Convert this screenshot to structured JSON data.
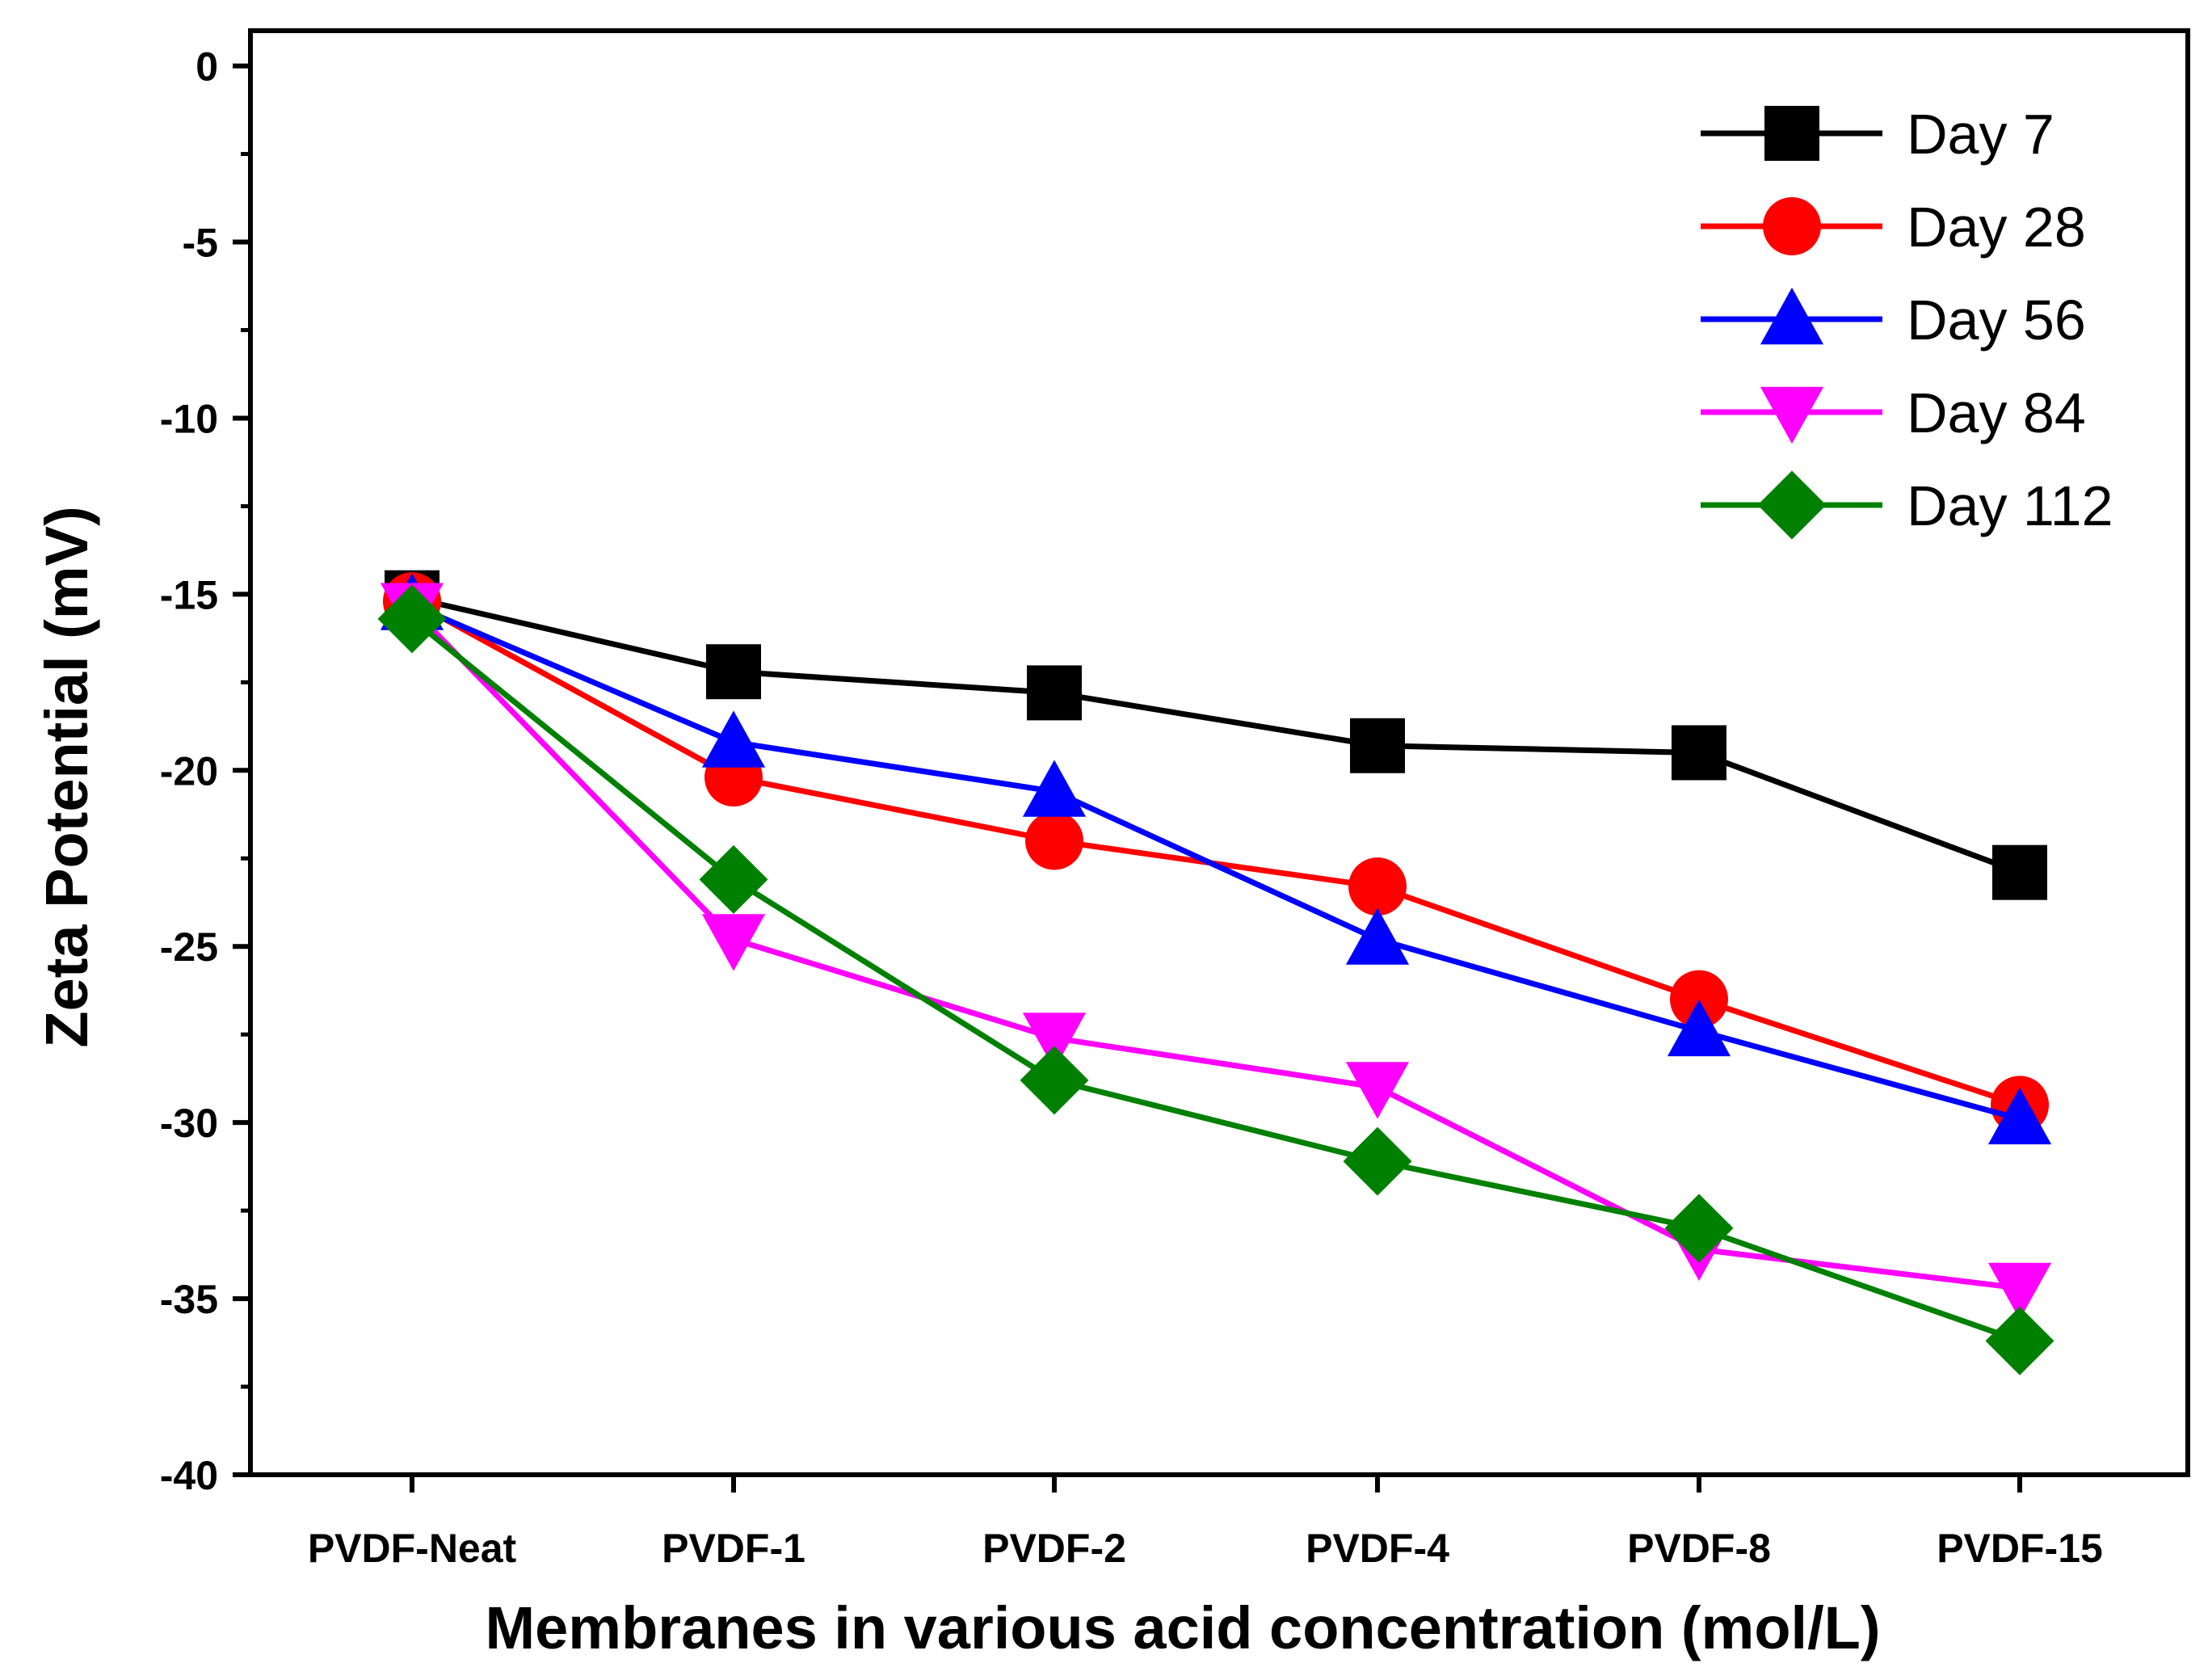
{
  "chart_data": {
    "type": "line",
    "title": "",
    "xlabel": "Membranes in various acid concentration (mol/L)",
    "ylabel": "Zeta Potential (mV)",
    "categories": [
      "PVDF-Neat",
      "PVDF-1",
      "PVDF-2",
      "PVDF-4",
      "PVDF-8",
      "PVDF-15"
    ],
    "ylim": [
      -40,
      1
    ],
    "yticks": [
      0,
      -5,
      -10,
      -15,
      -20,
      -25,
      -30,
      -35,
      -40
    ],
    "ytick_labels": [
      "0",
      "-5",
      "-10",
      "-15",
      "-20",
      "-25",
      "-30",
      "-35",
      "-40"
    ],
    "grid": false,
    "legend_position": "top-right",
    "series": [
      {
        "name": "Day 7",
        "marker": "square",
        "color": "#000000",
        "values": [
          -15.1,
          -17.2,
          -17.8,
          -19.3,
          -19.5,
          -22.9
        ]
      },
      {
        "name": "Day 28",
        "marker": "circle",
        "color": "#ff0000",
        "values": [
          -15.2,
          -20.2,
          -22.0,
          -23.3,
          -26.5,
          -29.5
        ]
      },
      {
        "name": "Day 56",
        "marker": "triangle-up",
        "color": "#0000ff",
        "values": [
          -15.3,
          -19.2,
          -20.6,
          -24.8,
          -27.4,
          -29.9
        ]
      },
      {
        "name": "Day 84",
        "marker": "triangle-down",
        "color": "#ff00ff",
        "values": [
          -15.4,
          -24.8,
          -27.6,
          -29.0,
          -33.6,
          -34.7
        ]
      },
      {
        "name": "Day 112",
        "marker": "diamond",
        "color": "#008000",
        "values": [
          -15.7,
          -23.1,
          -28.8,
          -31.1,
          -33.0,
          -36.2
        ]
      }
    ]
  }
}
